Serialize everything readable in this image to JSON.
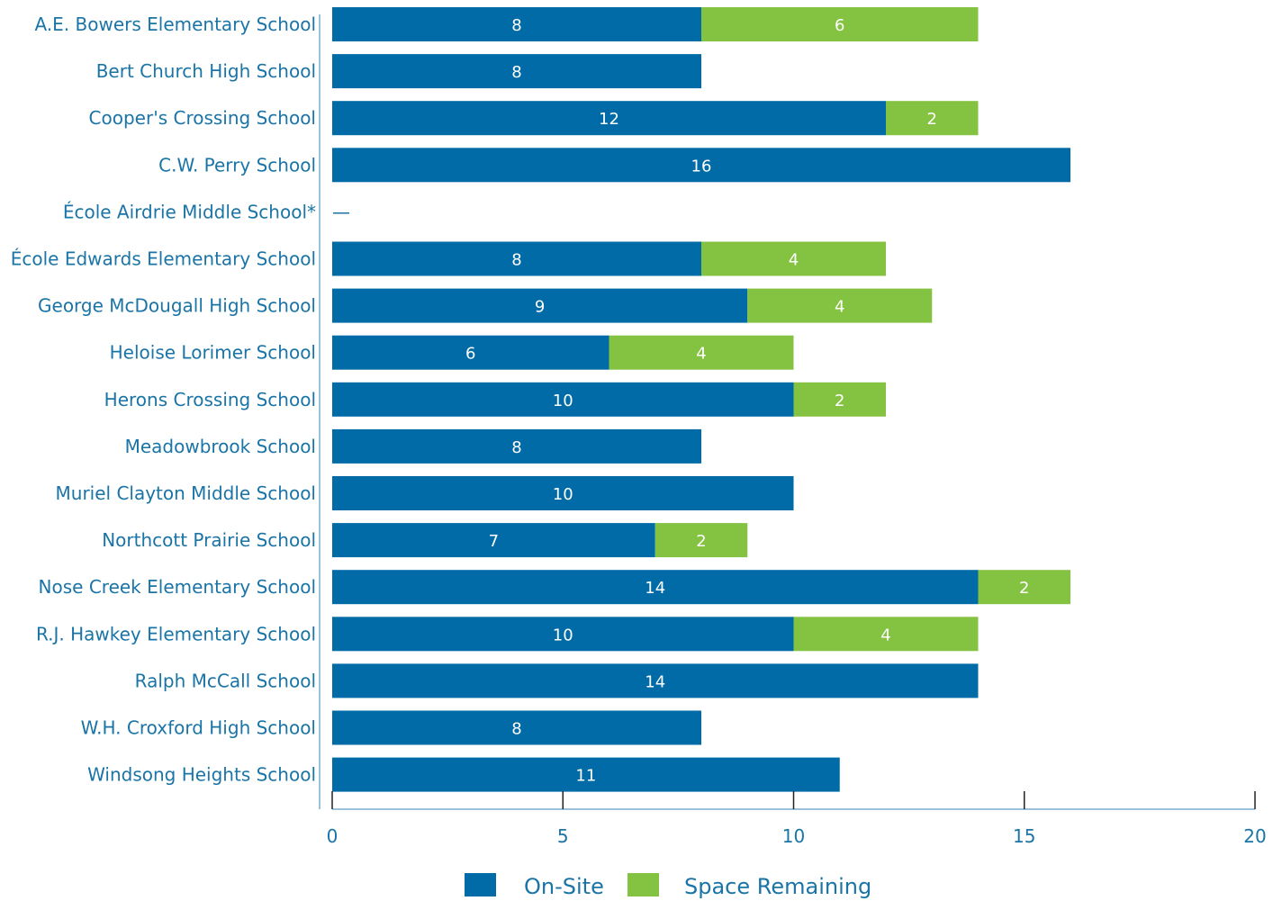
{
  "chart_data": {
    "type": "bar",
    "orientation": "horizontal",
    "stacked": true,
    "categories": [
      "A.E. Bowers Elementary School",
      "Bert Church High School",
      "Cooper's Crossing School",
      "C.W. Perry School",
      "École Airdrie Middle School*",
      "École Edwards Elementary School",
      "George McDougall High School",
      "Heloise Lorimer School",
      "Herons Crossing School",
      "Meadowbrook School",
      "Muriel Clayton Middle School",
      "Northcott Prairie School",
      "Nose Creek Elementary School",
      "R.J. Hawkey Elementary School",
      "Ralph McCall School",
      "W.H. Croxford High School",
      "Windsong Heights School"
    ],
    "series": [
      {
        "name": "On-Site",
        "color": "#006ba6",
        "values": [
          8,
          8,
          12,
          16,
          null,
          8,
          9,
          6,
          10,
          8,
          10,
          7,
          14,
          10,
          14,
          8,
          11
        ]
      },
      {
        "name": "Space Remaining",
        "color": "#84c341",
        "values": [
          6,
          null,
          2,
          null,
          null,
          4,
          4,
          4,
          2,
          null,
          null,
          2,
          2,
          4,
          null,
          null,
          null
        ]
      }
    ],
    "missing_marker": "—",
    "xlim": [
      0,
      20
    ],
    "xticks": [
      "0",
      "5",
      "10",
      "15",
      "20"
    ],
    "legend_position": "bottom-center",
    "grid": false
  }
}
